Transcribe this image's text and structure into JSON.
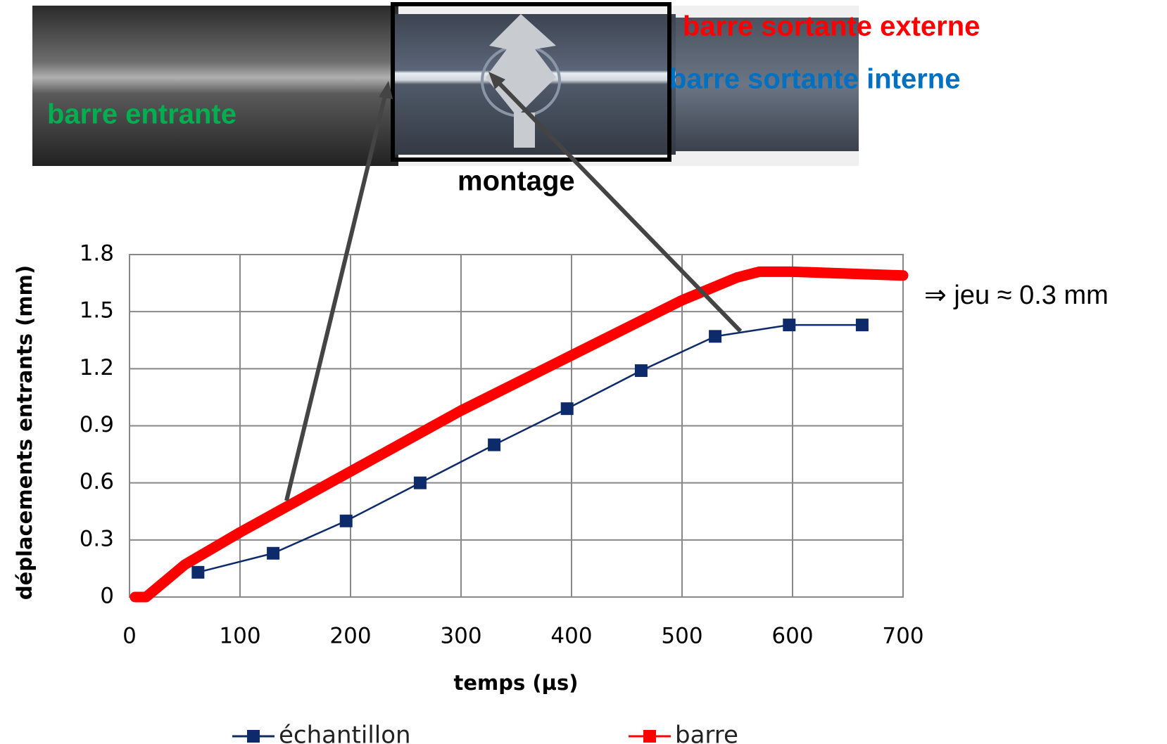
{
  "chart_data": {
    "type": "line",
    "photo_labels": {
      "inlet": "barre entrante",
      "outer": "barre sortante externe",
      "inner": "barre sortante interne",
      "setup": "montage"
    },
    "annotation": "⇒ jeu ≈ 0.3 mm",
    "xlabel": "temps (µs)",
    "ylabel": "déplacements entrants (mm)",
    "xlim": [
      0,
      700
    ],
    "ylim": [
      0,
      1.8
    ],
    "xticks": [
      0,
      100,
      200,
      300,
      400,
      500,
      600,
      700
    ],
    "yticks": [
      0,
      0.3,
      0.6,
      0.9,
      1.2,
      1.5,
      1.8
    ],
    "grid": true,
    "series": [
      {
        "name": "échantillon",
        "color": "#0d2a6b",
        "markers": true,
        "x": [
          62,
          130,
          196,
          263,
          330,
          396,
          463,
          530,
          597,
          663
        ],
        "values": [
          0.13,
          0.23,
          0.4,
          0.6,
          0.8,
          0.99,
          1.19,
          1.37,
          1.43,
          1.43
        ]
      },
      {
        "name": "barre",
        "color": "#ff0000",
        "markers": false,
        "x": [
          5,
          15,
          50,
          100,
          200,
          300,
          400,
          500,
          550,
          570,
          600,
          700
        ],
        "values": [
          0,
          0,
          0.17,
          0.34,
          0.66,
          0.98,
          1.27,
          1.56,
          1.68,
          1.71,
          1.71,
          1.69
        ]
      }
    ]
  }
}
